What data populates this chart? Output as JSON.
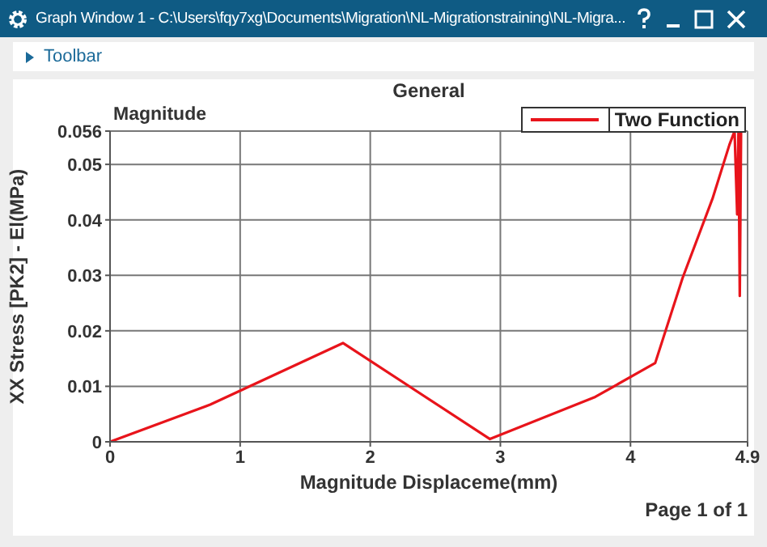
{
  "chart_data": {
    "type": "line",
    "title": "General",
    "xlabel": "Magnitude Displaceme(mm)",
    "ylabel": "XX Stress [PK2] - El(MPa)",
    "annotations": [
      "Graph Window 1 - C:\\Users\\fqy7xg\\Documents\\Migration\\NL-Migrationstraining\\NL-Migra...",
      "Toolbar",
      "Magnitude",
      "Page 1 of 1"
    ],
    "x": [
      0,
      0.77,
      1.79,
      2.92,
      3.73,
      4.19,
      4.4,
      4.63,
      4.76,
      4.8,
      4.82,
      4.83,
      4.84,
      4.85
    ],
    "series": [
      {
        "name": "Two Function",
        "color": "#e8141b",
        "values": [
          0,
          0.0067,
          0.0178,
          0.0005,
          0.0081,
          0.0142,
          0.0295,
          0.0438,
          0.0535,
          0.056,
          0.041,
          0.056,
          0.0263,
          0.056
        ]
      }
    ],
    "xlim": [
      0,
      4.9
    ],
    "xticks": [
      0,
      1,
      2,
      3,
      4,
      4.9
    ],
    "ylim": [
      0,
      0.056
    ],
    "yticks": [
      0,
      0.01,
      0.02,
      0.03,
      0.04,
      0.05,
      0.056
    ],
    "grid": true,
    "legend": "top right",
    "marker": "none",
    "line_style": "solid"
  }
}
